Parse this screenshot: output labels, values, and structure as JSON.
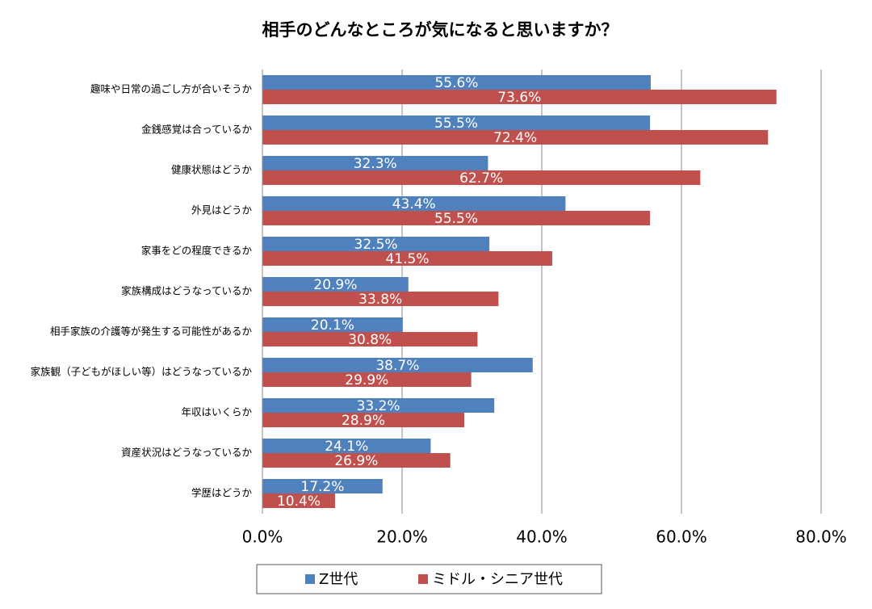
{
  "chart_data": {
    "type": "bar",
    "orientation": "horizontal",
    "title": "相手のどんなところが気になると思いますか？",
    "categories": [
      "趣味や日常の過ごし方が合いそうか",
      "金銭感覚は合っているか",
      "健康状態はどうか",
      "外見はどうか",
      "家事をどの程度できるか",
      "家族構成はどうなっているか",
      "相手家族の介護等が発生する可能性があるか",
      "家族観（子どもがほしい等）はどうなっているか",
      "年収はいくらか",
      "資産状況はどうなっているか",
      "学歴はどうか"
    ],
    "series": [
      {
        "name": "Z世代",
        "color": "#4f81bd",
        "values": [
          55.6,
          55.5,
          32.3,
          43.4,
          32.5,
          20.9,
          20.1,
          38.7,
          33.2,
          24.1,
          17.2
        ],
        "value_labels": [
          "55.6%",
          "55.5%",
          "32.3%",
          "43.4%",
          "32.5%",
          "20.9%",
          "20.1%",
          "38.7%",
          "33.2%",
          "24.1%",
          "17.2%"
        ]
      },
      {
        "name": "ミドル・シニア世代",
        "color": "#c0504d",
        "values": [
          73.6,
          72.4,
          62.7,
          55.5,
          41.5,
          33.8,
          30.8,
          29.9,
          28.9,
          26.9,
          10.4
        ],
        "value_labels": [
          "73.6%",
          "72.4%",
          "62.7%",
          "55.5%",
          "41.5%",
          "33.8%",
          "30.8%",
          "29.9%",
          "28.9%",
          "26.9%",
          "10.4%"
        ]
      }
    ],
    "xlim": [
      0,
      80
    ],
    "xticks": [
      {
        "value": 0,
        "label": "0.0%"
      },
      {
        "value": 20,
        "label": "20.0%"
      },
      {
        "value": 40,
        "label": "40.0%"
      },
      {
        "value": 60,
        "label": "60.0%"
      },
      {
        "value": 80,
        "label": "80.0%"
      }
    ],
    "grid": true,
    "legend": "bottom"
  }
}
